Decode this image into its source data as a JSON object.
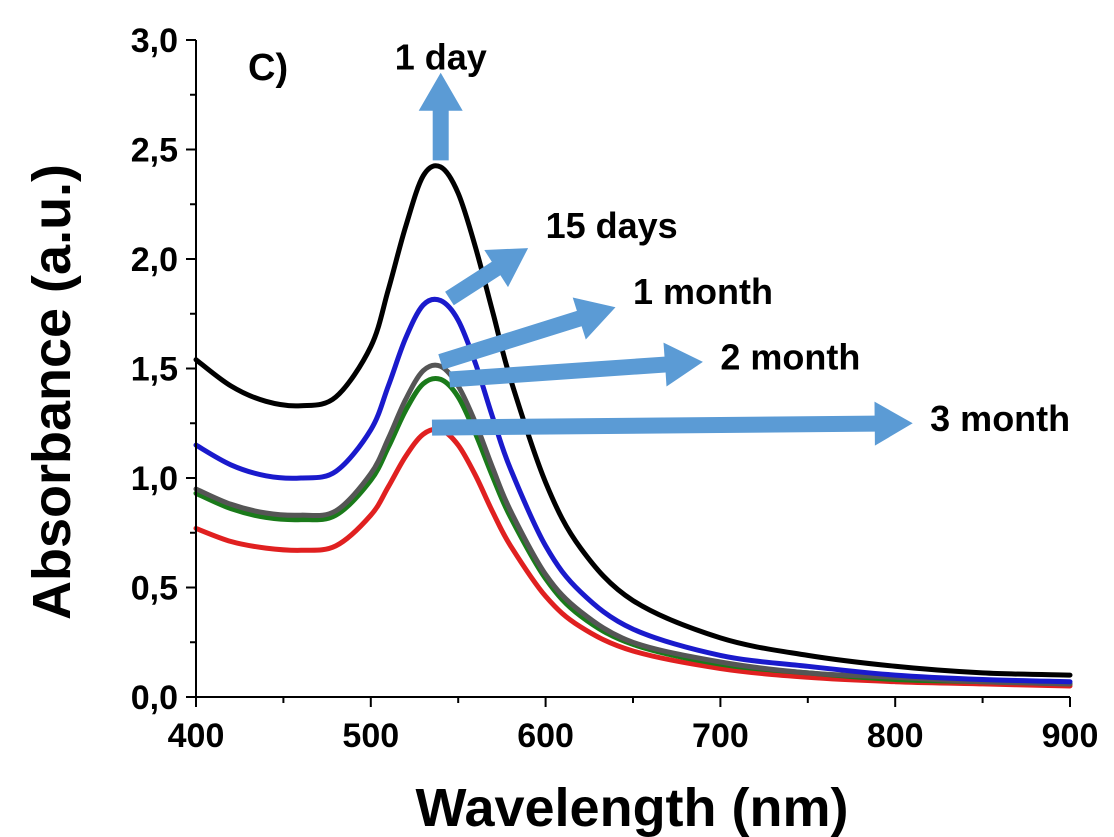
{
  "chart_data": {
    "type": "line",
    "panel_label": "C)",
    "xlabel": "Wavelength (nm)",
    "ylabel": "Absorbance (a.u.)",
    "xlim": [
      400,
      900
    ],
    "ylim": [
      0,
      3
    ],
    "x_ticks": [
      400,
      500,
      600,
      700,
      800,
      900
    ],
    "x_tick_labels": [
      "400",
      "500",
      "600",
      "700",
      "800",
      "900"
    ],
    "y_ticks": [
      0,
      0.5,
      1,
      1.5,
      2,
      2.5,
      3
    ],
    "y_tick_labels": [
      "0,0",
      "0,5",
      "1,0",
      "1,5",
      "2,0",
      "2,5",
      "3,0"
    ],
    "grid": false,
    "x": [
      400,
      420,
      440,
      460,
      480,
      500,
      510,
      520,
      530,
      540,
      550,
      560,
      570,
      580,
      600,
      620,
      650,
      700,
      750,
      800,
      850,
      900
    ],
    "series": [
      {
        "name": "1 day",
        "color": "#000000",
        "values": [
          1.54,
          1.42,
          1.35,
          1.33,
          1.37,
          1.6,
          1.86,
          2.15,
          2.38,
          2.42,
          2.3,
          2.05,
          1.75,
          1.45,
          0.98,
          0.68,
          0.44,
          0.27,
          0.19,
          0.14,
          0.11,
          0.1
        ]
      },
      {
        "name": "15 days",
        "color": "#1a1acc",
        "values": [
          1.15,
          1.06,
          1.01,
          1.0,
          1.03,
          1.22,
          1.42,
          1.64,
          1.79,
          1.81,
          1.72,
          1.52,
          1.27,
          1.04,
          0.69,
          0.48,
          0.31,
          0.19,
          0.14,
          0.1,
          0.08,
          0.07
        ]
      },
      {
        "name": "1 month",
        "color": "#555555",
        "values": [
          0.95,
          0.88,
          0.84,
          0.83,
          0.85,
          1.02,
          1.18,
          1.36,
          1.49,
          1.51,
          1.42,
          1.25,
          1.04,
          0.85,
          0.56,
          0.39,
          0.25,
          0.16,
          0.11,
          0.09,
          0.07,
          0.06
        ]
      },
      {
        "name": "2 month",
        "color": "#1a7a1a",
        "values": [
          0.93,
          0.86,
          0.82,
          0.81,
          0.83,
          0.99,
          1.14,
          1.31,
          1.43,
          1.45,
          1.37,
          1.2,
          1.0,
          0.82,
          0.54,
          0.37,
          0.24,
          0.15,
          0.11,
          0.08,
          0.07,
          0.06
        ]
      },
      {
        "name": "3 month",
        "color": "#e02020",
        "values": [
          0.77,
          0.71,
          0.68,
          0.67,
          0.69,
          0.83,
          0.96,
          1.1,
          1.2,
          1.22,
          1.15,
          1.01,
          0.84,
          0.69,
          0.46,
          0.32,
          0.21,
          0.13,
          0.09,
          0.07,
          0.06,
          0.05
        ]
      }
    ],
    "annotations": [
      {
        "text": "1 day",
        "arrow_from": [
          540,
          2.45
        ],
        "arrow_to": [
          540,
          2.85
        ],
        "text_at": [
          540,
          2.92
        ]
      },
      {
        "text": "15 days",
        "arrow_from": [
          545,
          1.82
        ],
        "arrow_to": [
          590,
          2.05
        ],
        "text_at": [
          600,
          2.15
        ]
      },
      {
        "text": "1 month",
        "arrow_from": [
          540,
          1.53
        ],
        "arrow_to": [
          640,
          1.78
        ],
        "text_at": [
          650,
          1.85
        ]
      },
      {
        "text": "2 month",
        "arrow_from": [
          545,
          1.45
        ],
        "arrow_to": [
          690,
          1.53
        ],
        "text_at": [
          700,
          1.55
        ]
      },
      {
        "text": "3 month",
        "arrow_from": [
          535,
          1.23
        ],
        "arrow_to": [
          810,
          1.25
        ],
        "text_at": [
          820,
          1.27
        ]
      }
    ],
    "arrow_color": "#5b9bd5"
  }
}
